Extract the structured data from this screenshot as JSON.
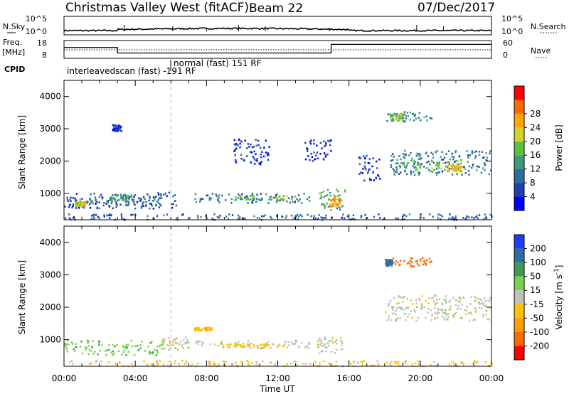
{
  "header": {
    "title": "Christmas Valley West (fitACF)",
    "beam": "Beam 22",
    "date": "07/Dec/2017"
  },
  "ops_panel": {
    "nsky_label": "N.Sky",
    "nsky_ticks": [
      "10^5",
      "10^0"
    ],
    "nsearch_label": "N.Search",
    "nsearch_ticks": [
      "10^5",
      "10^0"
    ],
    "freq_label_1": "Freq.",
    "freq_label_2": "[MHz]",
    "freq_ticks": [
      "18",
      "8"
    ],
    "nave_label": "Nave",
    "nave_ticks": [
      "60",
      "0"
    ],
    "cpid_label": "CPID",
    "cpid_segments": [
      {
        "label": "interleavedscan (fast) -191 RF"
      },
      {
        "label": "normal (fast) 151 RF"
      }
    ]
  },
  "chart_data": [
    {
      "type": "heatmap",
      "name": "power-panel",
      "ylabel": "Slant Range [km]",
      "xlabel": "",
      "ylim": [
        180,
        4500
      ],
      "xlim_hours": [
        0,
        24
      ],
      "yticks": [
        "1000",
        "2000",
        "3000",
        "4000"
      ],
      "colorbar": {
        "label": "Power [dB]",
        "ticks": [
          "4",
          "8",
          "12",
          "16",
          "20",
          "24",
          "28"
        ],
        "colors": [
          "#0000ff",
          "#1e3fb0",
          "#2e6e9e",
          "#3f9a7a",
          "#5cc23c",
          "#d6d02a",
          "#ffa500",
          "#ff6a00",
          "#ff0000"
        ]
      },
      "regions": [
        {
          "t": [
            0.0,
            6.3
          ],
          "r": [
            550,
            1050
          ],
          "level": 7
        },
        {
          "t": [
            0.3,
            5.5
          ],
          "r": [
            650,
            900
          ],
          "level": 11
        },
        {
          "t": [
            0.6,
            1.2
          ],
          "r": [
            640,
            760
          ],
          "level": 22
        },
        {
          "t": [
            2.5,
            3.8
          ],
          "r": [
            780,
            1000
          ],
          "level": 14
        },
        {
          "t": [
            7.3,
            13.8
          ],
          "r": [
            720,
            1020
          ],
          "level": 10
        },
        {
          "t": [
            9.5,
            13.0
          ],
          "r": [
            800,
            950
          ],
          "level": 17
        },
        {
          "t": [
            14.3,
            15.8
          ],
          "r": [
            500,
            1150
          ],
          "level": 15
        },
        {
          "t": [
            14.8,
            15.5
          ],
          "r": [
            600,
            900
          ],
          "level": 26
        },
        {
          "t": [
            18.2,
            24.0
          ],
          "r": [
            1600,
            2350
          ],
          "level": 11
        },
        {
          "t": [
            19.0,
            22.5
          ],
          "r": [
            1700,
            2050
          ],
          "level": 18
        },
        {
          "t": [
            21.5,
            22.3
          ],
          "r": [
            1700,
            1900
          ],
          "level": 24
        },
        {
          "t": [
            18.0,
            20.6
          ],
          "r": [
            3250,
            3550
          ],
          "level": 13
        },
        {
          "t": [
            18.3,
            19.0
          ],
          "r": [
            3300,
            3500
          ],
          "level": 19
        },
        {
          "t": [
            9.5,
            11.5
          ],
          "r": [
            1900,
            2700
          ],
          "level": 5
        },
        {
          "t": [
            13.5,
            15.0
          ],
          "r": [
            2000,
            2700
          ],
          "level": 5
        },
        {
          "t": [
            16.5,
            17.8
          ],
          "r": [
            1400,
            2200
          ],
          "level": 6
        },
        {
          "t": [
            2.7,
            3.2
          ],
          "r": [
            2950,
            3150
          ],
          "level": 6
        },
        {
          "t": [
            0.0,
            24.0
          ],
          "r": [
            200,
            380
          ],
          "level": 9
        }
      ]
    },
    {
      "type": "heatmap",
      "name": "velocity-panel",
      "ylabel": "Slant Range [km]",
      "xlabel": "Time UT",
      "ylim": [
        180,
        4500
      ],
      "xlim_hours": [
        0,
        24
      ],
      "yticks": [
        "1000",
        "2000",
        "3000",
        "4000"
      ],
      "xticks": [
        "00:00",
        "04:00",
        "08:00",
        "12:00",
        "16:00",
        "20:00",
        "00:00"
      ],
      "colorbar": {
        "label": "Velocity [m s^-1]",
        "ticks": [
          "200",
          "100",
          "50",
          "15",
          "-15",
          "-50",
          "-100",
          "-200"
        ],
        "colors": [
          "#1e3cff",
          "#2e6e9e",
          "#3f9a5a",
          "#7ad24c",
          "#c0c0c0",
          "#ffc000",
          "#ff9a00",
          "#ff6a00",
          "#ff0000"
        ]
      },
      "regions": [
        {
          "t": [
            0.0,
            5.5
          ],
          "r": [
            550,
            1000
          ],
          "v": 40
        },
        {
          "t": [
            5.5,
            7.0
          ],
          "r": [
            700,
            1100
          ],
          "v": 0
        },
        {
          "t": [
            7.3,
            13.8
          ],
          "r": [
            750,
            1000
          ],
          "v": 0
        },
        {
          "t": [
            9.0,
            12.5
          ],
          "r": [
            780,
            900
          ],
          "v": -30
        },
        {
          "t": [
            14.2,
            15.6
          ],
          "r": [
            600,
            1100
          ],
          "v": 0
        },
        {
          "t": [
            18.0,
            24.0
          ],
          "r": [
            1600,
            2400
          ],
          "v": 0
        },
        {
          "t": [
            18.0,
            20.6
          ],
          "r": [
            3250,
            3550
          ],
          "v": -150
        },
        {
          "t": [
            18.0,
            18.4
          ],
          "r": [
            3300,
            3500
          ],
          "v": 150
        },
        {
          "t": [
            7.3,
            8.3
          ],
          "r": [
            1300,
            1400
          ],
          "v": -40
        },
        {
          "t": [
            0.0,
            24.0
          ],
          "r": [
            200,
            380
          ],
          "v": -20
        }
      ]
    }
  ]
}
